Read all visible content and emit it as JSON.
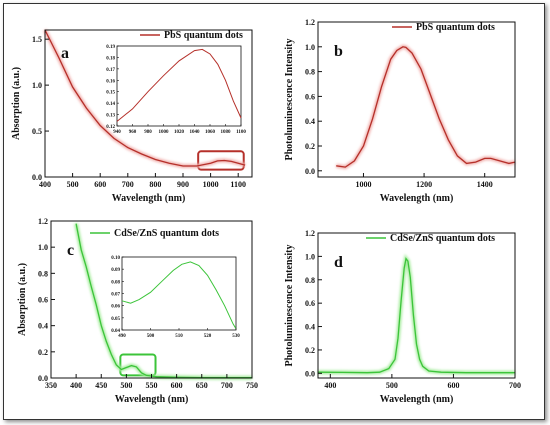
{
  "colors": {
    "pbs": "#b5302a",
    "pbs_glow": "#f1b0ad",
    "cdse": "#3cc43a",
    "cdse_glow": "#a7ec9f",
    "axis": "#111111"
  },
  "chart_data": [
    {
      "id": "a",
      "type": "line",
      "panel_label": "a",
      "xlabel": "Wavelength (nm)",
      "ylabel": "Absorption (a.u.)",
      "xlim": [
        400,
        1150
      ],
      "ylim": [
        0,
        1.6
      ],
      "xticks": [
        400,
        500,
        600,
        700,
        800,
        900,
        1000,
        1100
      ],
      "yticks": [
        0.0,
        0.5,
        1.0,
        1.5
      ],
      "series": [
        {
          "name": "PbS quantum dots",
          "color_key": "pbs",
          "x": [
            400,
            450,
            500,
            550,
            600,
            650,
            700,
            750,
            800,
            850,
            900,
            950,
            1000,
            1025,
            1050,
            1075,
            1100,
            1125
          ],
          "y": [
            1.6,
            1.3,
            0.98,
            0.75,
            0.56,
            0.42,
            0.32,
            0.25,
            0.19,
            0.15,
            0.12,
            0.12,
            0.15,
            0.175,
            0.18,
            0.17,
            0.15,
            0.13
          ]
        }
      ],
      "highlight_box": {
        "x": [
          955,
          1120
        ],
        "y": [
          0.08,
          0.28
        ]
      },
      "inset": {
        "xlim": [
          940,
          1100
        ],
        "ylim": [
          0.12,
          0.19
        ],
        "xticks": [
          940,
          960,
          980,
          1000,
          1020,
          1040,
          1060,
          1080,
          1100
        ],
        "yticks": [
          0.12,
          0.13,
          0.14,
          0.15,
          0.16,
          0.17,
          0.18,
          0.19
        ],
        "x": [
          940,
          960,
          980,
          1000,
          1020,
          1040,
          1050,
          1060,
          1070,
          1080,
          1090,
          1100
        ],
        "y": [
          0.124,
          0.135,
          0.15,
          0.164,
          0.177,
          0.186,
          0.187,
          0.183,
          0.174,
          0.16,
          0.142,
          0.127
        ]
      }
    },
    {
      "id": "b",
      "type": "line",
      "panel_label": "b",
      "xlabel": "Wavelength (nm)",
      "ylabel": "Photoluminescence Intensity",
      "xlim": [
        850,
        1500
      ],
      "ylim": [
        -0.05,
        1.2
      ],
      "xticks": [
        1000,
        1200,
        1400
      ],
      "yticks": [
        0.0,
        0.2,
        0.4,
        0.6,
        0.8,
        1.0,
        1.2
      ],
      "series": [
        {
          "name": "PbS quantum dots",
          "color_key": "pbs",
          "x": [
            910,
            940,
            970,
            1000,
            1030,
            1060,
            1090,
            1110,
            1130,
            1140,
            1160,
            1190,
            1220,
            1250,
            1280,
            1310,
            1340,
            1370,
            1400,
            1420,
            1450,
            1480,
            1500
          ],
          "y": [
            0.04,
            0.03,
            0.08,
            0.2,
            0.42,
            0.68,
            0.9,
            0.97,
            1.0,
            0.995,
            0.95,
            0.82,
            0.62,
            0.42,
            0.25,
            0.12,
            0.06,
            0.07,
            0.1,
            0.1,
            0.08,
            0.06,
            0.07
          ]
        }
      ]
    },
    {
      "id": "c",
      "type": "line",
      "panel_label": "c",
      "xlabel": "Wavelength (nm)",
      "ylabel": "Absorption (a.u.)",
      "xlim": [
        350,
        750
      ],
      "ylim": [
        0,
        1.2
      ],
      "xticks": [
        350,
        400,
        450,
        500,
        550,
        600,
        650,
        700,
        750
      ],
      "yticks": [
        0.0,
        0.2,
        0.4,
        0.6,
        0.8,
        1.0,
        1.2
      ],
      "series": [
        {
          "name": "CdSe/ZnS quantum dots",
          "color_key": "cdse",
          "x": [
            400,
            410,
            420,
            430,
            440,
            450,
            460,
            470,
            480,
            490,
            500,
            510,
            520,
            530,
            540,
            560,
            600,
            650,
            700,
            750
          ],
          "y": [
            1.18,
            0.98,
            0.85,
            0.7,
            0.56,
            0.4,
            0.28,
            0.18,
            0.1,
            0.065,
            0.08,
            0.095,
            0.085,
            0.04,
            0.02,
            0.01,
            0.005,
            0.003,
            0.002,
            0.002
          ]
        }
      ],
      "highlight_box": {
        "x": [
          488,
          558
        ],
        "y": [
          0.02,
          0.18
        ]
      },
      "inset": {
        "xlim": [
          490,
          530
        ],
        "ylim": [
          0.04,
          0.1
        ],
        "xticks": [
          490,
          500,
          510,
          520,
          530
        ],
        "yticks": [
          0.04,
          0.05,
          0.06,
          0.07,
          0.08,
          0.09,
          0.1
        ],
        "x": [
          490,
          493,
          496,
          500,
          504,
          508,
          511,
          514,
          517,
          520,
          523,
          526,
          529,
          530
        ],
        "y": [
          0.064,
          0.062,
          0.065,
          0.071,
          0.08,
          0.089,
          0.094,
          0.096,
          0.093,
          0.085,
          0.073,
          0.06,
          0.045,
          0.041
        ]
      }
    },
    {
      "id": "d",
      "type": "line",
      "panel_label": "d",
      "xlabel": "Wavelength (nm)",
      "ylabel": "Photoluminescence Intensity",
      "xlim": [
        380,
        700
      ],
      "ylim": [
        -0.04,
        1.2
      ],
      "xticks": [
        400,
        500,
        600,
        700
      ],
      "yticks": [
        0.0,
        0.2,
        0.4,
        0.6,
        0.8,
        1.0,
        1.2
      ],
      "series": [
        {
          "name": "CdSe/ZnS quantum dots",
          "color_key": "cdse",
          "x": [
            380,
            420,
            460,
            480,
            495,
            505,
            510,
            515,
            520,
            523,
            526,
            530,
            535,
            540,
            545,
            550,
            560,
            580,
            620,
            700
          ],
          "y": [
            0.01,
            0.008,
            0.005,
            0.01,
            0.04,
            0.12,
            0.3,
            0.62,
            0.9,
            0.98,
            0.96,
            0.82,
            0.5,
            0.25,
            0.12,
            0.06,
            0.02,
            0.01,
            0.005,
            0.005
          ]
        }
      ]
    }
  ]
}
